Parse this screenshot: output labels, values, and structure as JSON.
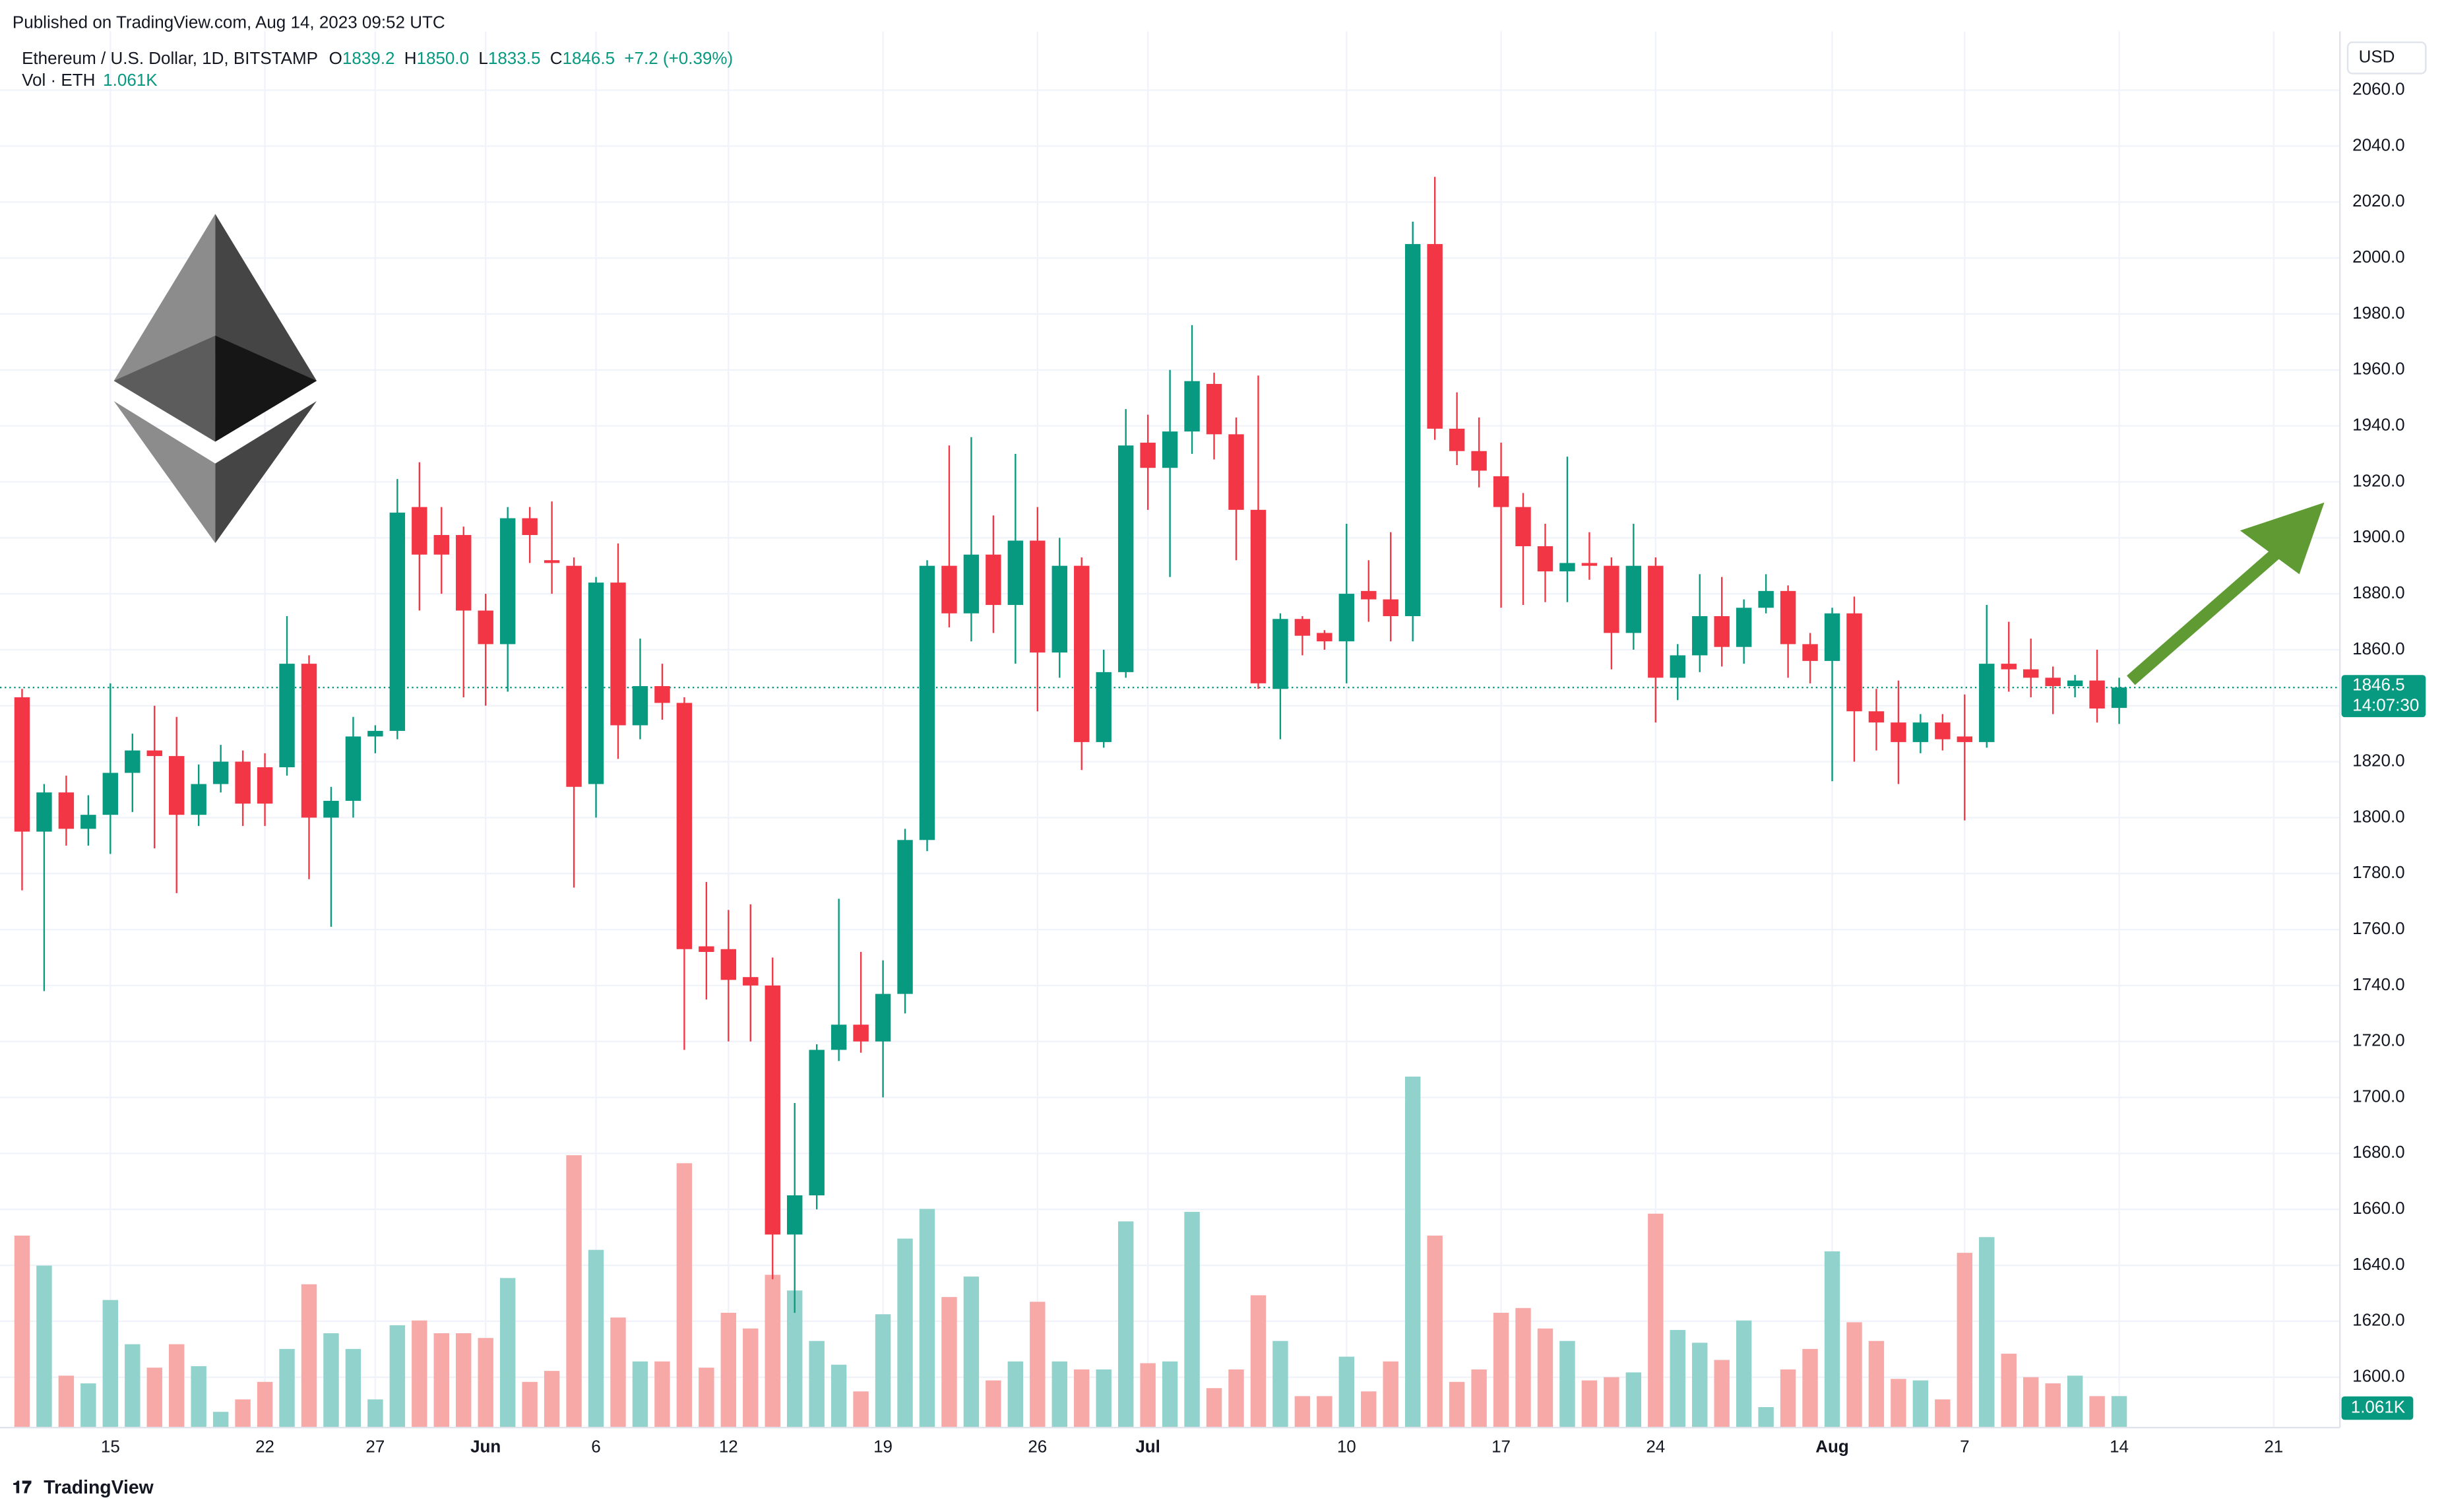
{
  "header": {
    "published": "Published on TradingView.com, Aug 14, 2023 09:52 UTC",
    "symbol": "Ethereum / U.S. Dollar, 1D, BITSTAMP",
    "o": "O",
    "h": "H",
    "l": "L",
    "c": "C",
    "ohlc_labels": {
      "open": "1839.2",
      "high": "1850.0",
      "low": "1833.5",
      "close": "1846.5"
    },
    "change": "+7.2 (+0.39%)",
    "volume_title": "Vol · ETH",
    "volume_label": "1.061K",
    "currency": "USD",
    "footer": "TradingView"
  },
  "chart_data": {
    "type": "candlestick",
    "up_color": "#089981",
    "down_color": "#f23645",
    "volume_up_color": "#92d2cc",
    "volume_down_color": "#f7a9a7",
    "grid": true,
    "categories": [
      "2023-05-11",
      "2023-05-12",
      "2023-05-13",
      "2023-05-14",
      "2023-05-15",
      "2023-05-16",
      "2023-05-17",
      "2023-05-18",
      "2023-05-19",
      "2023-05-20",
      "2023-05-21",
      "2023-05-22",
      "2023-05-23",
      "2023-05-24",
      "2023-05-25",
      "2023-05-26",
      "2023-05-27",
      "2023-05-28",
      "2023-05-29",
      "2023-05-30",
      "2023-05-31",
      "2023-06-01",
      "2023-06-02",
      "2023-06-03",
      "2023-06-04",
      "2023-06-05",
      "2023-06-06",
      "2023-06-07",
      "2023-06-08",
      "2023-06-09",
      "2023-06-10",
      "2023-06-11",
      "2023-06-12",
      "2023-06-13",
      "2023-06-14",
      "2023-06-15",
      "2023-06-16",
      "2023-06-17",
      "2023-06-18",
      "2023-06-19",
      "2023-06-20",
      "2023-06-21",
      "2023-06-22",
      "2023-06-23",
      "2023-06-24",
      "2023-06-25",
      "2023-06-26",
      "2023-06-27",
      "2023-06-28",
      "2023-06-29",
      "2023-06-30",
      "2023-07-01",
      "2023-07-02",
      "2023-07-03",
      "2023-07-04",
      "2023-07-05",
      "2023-07-06",
      "2023-07-07",
      "2023-07-08",
      "2023-07-09",
      "2023-07-10",
      "2023-07-11",
      "2023-07-12",
      "2023-07-13",
      "2023-07-14",
      "2023-07-15",
      "2023-07-16",
      "2023-07-17",
      "2023-07-18",
      "2023-07-19",
      "2023-07-20",
      "2023-07-21",
      "2023-07-22",
      "2023-07-23",
      "2023-07-24",
      "2023-07-25",
      "2023-07-26",
      "2023-07-27",
      "2023-07-28",
      "2023-07-29",
      "2023-07-30",
      "2023-07-31",
      "2023-08-01",
      "2023-08-02",
      "2023-08-03",
      "2023-08-04",
      "2023-08-05",
      "2023-08-06",
      "2023-08-07",
      "2023-08-08",
      "2023-08-09",
      "2023-08-10",
      "2023-08-11",
      "2023-08-12",
      "2023-08-13",
      "2023-08-14"
    ],
    "open": [
      1843,
      1795,
      1809,
      1796,
      1801,
      1816,
      1824,
      1822,
      1801,
      1812,
      1820,
      1818,
      1818,
      1855,
      1800,
      1806,
      1829,
      1831,
      1911,
      1901,
      1901,
      1874,
      1862,
      1907,
      1892,
      1890,
      1812,
      1884,
      1833,
      1847,
      1841,
      1754,
      1753,
      1743,
      1740,
      1651,
      1665,
      1717,
      1726,
      1720,
      1737,
      1792,
      1890,
      1873,
      1894,
      1876,
      1899,
      1859,
      1890,
      1827,
      1852,
      1934,
      1925,
      1938,
      1955,
      1937,
      1910,
      1846,
      1871,
      1866,
      1863,
      1881,
      1878,
      1872,
      2005,
      1939,
      1931,
      1922,
      1911,
      1897,
      1888,
      1891,
      1890,
      1866,
      1890,
      1850,
      1858,
      1872,
      1861,
      1875,
      1881,
      1862,
      1856,
      1873,
      1838,
      1834,
      1827,
      1834,
      1829,
      1827,
      1855,
      1853,
      1850,
      1847,
      1849,
      1839.2
    ],
    "high": [
      1846,
      1812,
      1815,
      1808,
      1848,
      1830,
      1840,
      1836,
      1819,
      1826,
      1824,
      1823,
      1872,
      1858,
      1811,
      1836,
      1833,
      1921,
      1927,
      1911,
      1904,
      1880,
      1911,
      1911,
      1913,
      1893,
      1886,
      1898,
      1864,
      1855,
      1843,
      1777,
      1767,
      1769,
      1750,
      1698,
      1719,
      1771,
      1752,
      1749,
      1796,
      1892,
      1933,
      1936,
      1908,
      1930,
      1911,
      1900,
      1893,
      1860,
      1946,
      1944,
      1960,
      1976,
      1959,
      1943,
      1958,
      1873,
      1872,
      1867,
      1905,
      1892,
      1902,
      2013,
      2029,
      1952,
      1943,
      1934,
      1916,
      1905,
      1929,
      1902,
      1893,
      1905,
      1893,
      1862,
      1887,
      1886,
      1878,
      1887,
      1883,
      1866,
      1875,
      1879,
      1846,
      1849,
      1837,
      1837,
      1844,
      1876,
      1870,
      1864,
      1854,
      1851,
      1860,
      1850.0
    ],
    "low": [
      1774,
      1738,
      1790,
      1790,
      1787,
      1802,
      1789,
      1773,
      1797,
      1809,
      1797,
      1797,
      1815,
      1778,
      1761,
      1800,
      1823,
      1828,
      1874,
      1880,
      1843,
      1840,
      1845,
      1891,
      1880,
      1775,
      1800,
      1821,
      1828,
      1835,
      1717,
      1735,
      1720,
      1720,
      1635,
      1623,
      1660,
      1713,
      1716,
      1700,
      1730,
      1788,
      1868,
      1863,
      1866,
      1855,
      1838,
      1850,
      1817,
      1825,
      1850,
      1910,
      1886,
      1930,
      1928,
      1892,
      1846,
      1828,
      1858,
      1860,
      1848,
      1870,
      1863,
      1863,
      1935,
      1926,
      1918,
      1875,
      1876,
      1877,
      1877,
      1885,
      1853,
      1860,
      1834,
      1842,
      1852,
      1854,
      1855,
      1873,
      1850,
      1848,
      1813,
      1820,
      1824,
      1812,
      1823,
      1824,
      1799,
      1825,
      1845,
      1843,
      1837,
      1843,
      1834,
      1833.5
    ],
    "close": [
      1795,
      1809,
      1796,
      1801,
      1816,
      1824,
      1822,
      1801,
      1812,
      1820,
      1805,
      1805,
      1855,
      1800,
      1806,
      1829,
      1831,
      1909,
      1894,
      1894,
      1874,
      1862,
      1907,
      1901,
      1891,
      1811,
      1884,
      1833,
      1847,
      1841,
      1753,
      1752,
      1742,
      1740,
      1651,
      1665,
      1717,
      1726,
      1720,
      1737,
      1792,
      1890,
      1873,
      1894,
      1876,
      1899,
      1859,
      1890,
      1827,
      1852,
      1933,
      1925,
      1938,
      1956,
      1937,
      1910,
      1848,
      1871,
      1865,
      1863,
      1880,
      1878,
      1872,
      2005,
      1939,
      1931,
      1924,
      1911,
      1897,
      1888,
      1891,
      1890,
      1866,
      1890,
      1850,
      1858,
      1872,
      1861,
      1875,
      1881,
      1862,
      1856,
      1873,
      1838,
      1834,
      1827,
      1834,
      1828,
      1827,
      1855,
      1853,
      1850,
      1847,
      1849,
      1839,
      1846.5
    ],
    "volume": [
      6.47,
      5.46,
      1.75,
      1.49,
      4.3,
      2.81,
      2.02,
      2.81,
      2.07,
      0.53,
      0.95,
      1.54,
      2.65,
      4.83,
      3.18,
      2.65,
      0.95,
      3.45,
      3.61,
      3.18,
      3.18,
      3.02,
      5.04,
      1.54,
      1.91,
      9.18,
      5.99,
      3.71,
      2.23,
      2.23,
      8.91,
      2.02,
      3.87,
      3.34,
      5.15,
      4.62,
      2.92,
      2.12,
      1.22,
      3.82,
      6.37,
      7.37,
      4.4,
      5.09,
      1.59,
      2.23,
      4.24,
      2.23,
      1.96,
      1.96,
      6.95,
      2.17,
      2.23,
      7.27,
      1.33,
      1.96,
      4.46,
      2.92,
      1.06,
      1.06,
      2.39,
      1.22,
      2.23,
      11.83,
      6.47,
      1.54,
      1.96,
      3.87,
      4.03,
      3.34,
      2.92,
      1.59,
      1.7,
      1.86,
      7.21,
      3.29,
      2.86,
      2.28,
      3.61,
      0.69,
      1.96,
      2.65,
      5.94,
      3.55,
      2.92,
      1.64,
      1.59,
      0.95,
      5.89,
      6.42,
      2.49,
      1.7,
      1.49,
      1.75,
      1.06,
      1.061
    ],
    "countdown": "14:07:30",
    "xlim": [
      "2023-05-10",
      "2023-08-24"
    ],
    "xticks": [
      {
        "value": "2023-05-15",
        "label": "15"
      },
      {
        "value": "2023-05-22",
        "label": "22"
      },
      {
        "value": "2023-05-27",
        "label": "27"
      },
      {
        "value": "2023-06-01",
        "label": "Jun"
      },
      {
        "value": "2023-06-06",
        "label": "6"
      },
      {
        "value": "2023-06-12",
        "label": "12"
      },
      {
        "value": "2023-06-19",
        "label": "19"
      },
      {
        "value": "2023-06-26",
        "label": "26"
      },
      {
        "value": "2023-07-01",
        "label": "Jul"
      },
      {
        "value": "2023-07-10",
        "label": "10"
      },
      {
        "value": "2023-07-17",
        "label": "17"
      },
      {
        "value": "2023-07-24",
        "label": "24"
      },
      {
        "value": "2023-08-01",
        "label": "Aug"
      },
      {
        "value": "2023-08-07",
        "label": "7"
      },
      {
        "value": "2023-08-14",
        "label": "14"
      },
      {
        "value": "2023-08-21",
        "label": "21"
      }
    ],
    "ylim": [
      1582,
      2081
    ],
    "yticks": [
      {
        "value": 1600,
        "label": "1600.0"
      },
      {
        "value": 1620,
        "label": "1620.0"
      },
      {
        "value": 1640,
        "label": "1640.0"
      },
      {
        "value": 1660,
        "label": "1660.0"
      },
      {
        "value": 1680,
        "label": "1680.0"
      },
      {
        "value": 1700,
        "label": "1700.0"
      },
      {
        "value": 1720,
        "label": "1720.0"
      },
      {
        "value": 1740,
        "label": "1740.0"
      },
      {
        "value": 1760,
        "label": "1760.0"
      },
      {
        "value": 1780,
        "label": "1780.0"
      },
      {
        "value": 1800,
        "label": "1800.0"
      },
      {
        "value": 1820,
        "label": "1820.0"
      },
      {
        "value": 1840,
        "label": "1840.0"
      },
      {
        "value": 1860,
        "label": "1860.0"
      },
      {
        "value": 1880,
        "label": "1880.0"
      },
      {
        "value": 1900,
        "label": "1900.0"
      },
      {
        "value": 1920,
        "label": "1920.0"
      },
      {
        "value": 1940,
        "label": "1940.0"
      },
      {
        "value": 1960,
        "label": "1960.0"
      },
      {
        "value": 1980,
        "label": "1980.0"
      },
      {
        "value": 2000,
        "label": "2000.0"
      },
      {
        "value": 2020,
        "label": "2020.0"
      },
      {
        "value": 2040,
        "label": "2040.0"
      },
      {
        "value": 2060,
        "label": "2060.0"
      }
    ]
  }
}
